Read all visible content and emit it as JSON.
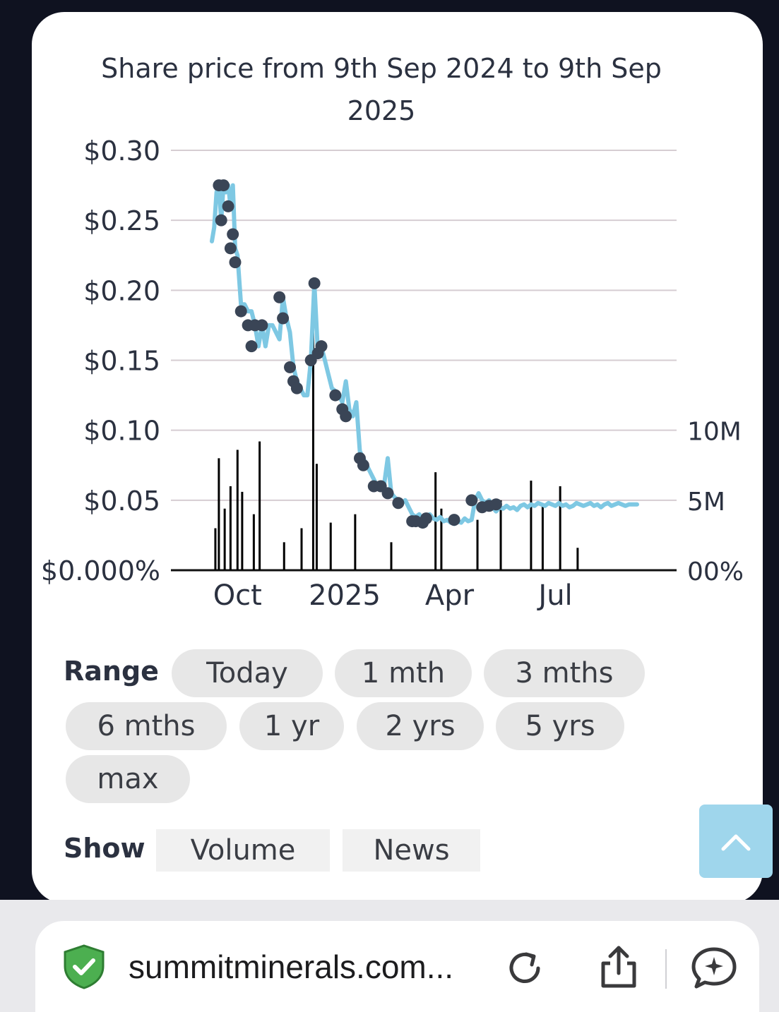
{
  "chart": {
    "title": "Share price from 9th Sep 2024 to 9th Sep 2025",
    "y_ticks": [
      "$0.30",
      "$0.25",
      "$0.20",
      "$0.15",
      "$0.10",
      "$0.05",
      "$0.000%"
    ],
    "right_ticks": [
      "10M",
      "5M",
      "00%"
    ],
    "x_ticks": [
      "Oct",
      "2025",
      "Apr",
      "Jul"
    ]
  },
  "chart_data": {
    "type": "line",
    "title": "Share price from 9th Sep 2024 to 9th Sep 2025",
    "x_range": [
      "2024-09-09",
      "2025-09-09"
    ],
    "ylim": [
      0,
      0.3
    ],
    "y2lim": [
      0,
      15000000
    ],
    "grid": true,
    "x_tick_labels": [
      "Oct",
      "2025",
      "Apr",
      "Jul"
    ],
    "series": [
      {
        "x": [
          "2024-09-09",
          "2024-09-11",
          "2024-09-13",
          "2024-09-15",
          "2024-09-17",
          "2024-09-19",
          "2024-09-21",
          "2024-09-23",
          "2024-09-25",
          "2024-09-27",
          "2024-09-29",
          "2024-10-01",
          "2024-10-04",
          "2024-10-07",
          "2024-10-10",
          "2024-10-13",
          "2024-10-16",
          "2024-10-19",
          "2024-10-22",
          "2024-10-25",
          "2024-10-28",
          "2024-10-31",
          "2024-11-03",
          "2024-11-06",
          "2024-11-09",
          "2024-11-12",
          "2024-11-15",
          "2024-11-18",
          "2024-11-21",
          "2024-11-24",
          "2024-11-27",
          "2024-11-30",
          "2024-12-03",
          "2024-12-06",
          "2024-12-09",
          "2024-12-12",
          "2024-12-15",
          "2024-12-18",
          "2024-12-21",
          "2024-12-24",
          "2024-12-27",
          "2024-12-30",
          "2025-01-02",
          "2025-01-05",
          "2025-01-08",
          "2025-01-11",
          "2025-01-14",
          "2025-01-17",
          "2025-01-20",
          "2025-01-23",
          "2025-01-26",
          "2025-01-29",
          "2025-02-01",
          "2025-02-04",
          "2025-02-07",
          "2025-02-10",
          "2025-02-13",
          "2025-02-16",
          "2025-02-19",
          "2025-02-22",
          "2025-02-25",
          "2025-02-28",
          "2025-03-03",
          "2025-03-06",
          "2025-03-09",
          "2025-03-12",
          "2025-03-15",
          "2025-03-18",
          "2025-03-21",
          "2025-03-24",
          "2025-03-27",
          "2025-03-30",
          "2025-04-02",
          "2025-04-05",
          "2025-04-08",
          "2025-04-11",
          "2025-04-14",
          "2025-04-17",
          "2025-04-20",
          "2025-04-23",
          "2025-04-26",
          "2025-04-29",
          "2025-05-02",
          "2025-05-05",
          "2025-05-08",
          "2025-05-11",
          "2025-05-14",
          "2025-05-17",
          "2025-05-20",
          "2025-05-23",
          "2025-05-26",
          "2025-05-29",
          "2025-06-01",
          "2025-06-04",
          "2025-06-07",
          "2025-06-10",
          "2025-06-13",
          "2025-06-16",
          "2025-06-19",
          "2025-06-22",
          "2025-06-25",
          "2025-06-28",
          "2025-07-01",
          "2025-07-04",
          "2025-07-07",
          "2025-07-10",
          "2025-07-13",
          "2025-07-16",
          "2025-07-19",
          "2025-07-22",
          "2025-07-25",
          "2025-07-28",
          "2025-07-31",
          "2025-08-03",
          "2025-08-06",
          "2025-08-09",
          "2025-08-12",
          "2025-08-15",
          "2025-08-18",
          "2025-08-21",
          "2025-08-24",
          "2025-08-27",
          "2025-08-30",
          "2025-09-02",
          "2025-09-05",
          "2025-09-09"
        ],
        "values": [
          0.235,
          0.245,
          0.27,
          0.275,
          0.25,
          0.275,
          0.27,
          0.275,
          0.26,
          0.275,
          0.23,
          0.225,
          0.19,
          0.19,
          0.185,
          0.185,
          0.175,
          0.16,
          0.175,
          0.16,
          0.175,
          0.175,
          0.17,
          0.165,
          0.195,
          0.18,
          0.17,
          0.145,
          0.135,
          0.13,
          0.125,
          0.125,
          0.15,
          0.205,
          0.155,
          0.16,
          0.15,
          0.14,
          0.13,
          0.128,
          0.125,
          0.12,
          0.135,
          0.115,
          0.11,
          0.12,
          0.085,
          0.08,
          0.075,
          0.07,
          0.065,
          0.06,
          0.06,
          0.062,
          0.08,
          0.055,
          0.052,
          0.05,
          0.048,
          0.05,
          0.045,
          0.04,
          0.038,
          0.04,
          0.036,
          0.035,
          0.04,
          0.037,
          0.036,
          0.038,
          0.035,
          0.036,
          0.034,
          0.033,
          0.035,
          0.034,
          0.037,
          0.035,
          0.036,
          0.05,
          0.055,
          0.05,
          0.048,
          0.05,
          0.045,
          0.042,
          0.045,
          0.044,
          0.046,
          0.044,
          0.045,
          0.043,
          0.046,
          0.047,
          0.045,
          0.047,
          0.046,
          0.048,
          0.047,
          0.046,
          0.048,
          0.047,
          0.046,
          0.048,
          0.046,
          0.047,
          0.045,
          0.046,
          0.048,
          0.047,
          0.046,
          0.047,
          0.048,
          0.046,
          0.047,
          0.045,
          0.047,
          0.048,
          0.046,
          0.047,
          0.048,
          0.047,
          0.046,
          0.047,
          0.047,
          0.047
        ],
        "color": "#7ec8e3"
      }
    ],
    "news_markers": {
      "x": [
        "2024-09-15",
        "2024-09-17",
        "2024-09-19",
        "2024-09-23",
        "2024-09-25",
        "2024-09-27",
        "2024-09-29",
        "2024-10-04",
        "2024-10-10",
        "2024-10-13",
        "2024-10-16",
        "2024-10-22",
        "2024-11-06",
        "2024-11-09",
        "2024-11-15",
        "2024-11-18",
        "2024-11-21",
        "2024-12-03",
        "2024-12-06",
        "2024-12-09",
        "2024-12-12",
        "2024-12-24",
        "2024-12-30",
        "2025-01-02",
        "2025-01-14",
        "2025-01-17",
        "2025-01-26",
        "2025-02-01",
        "2025-02-07",
        "2025-02-16",
        "2025-02-28",
        "2025-03-03",
        "2025-03-09",
        "2025-03-12",
        "2025-04-05",
        "2025-04-20",
        "2025-04-29",
        "2025-05-05",
        "2025-05-11"
      ],
      "values": [
        0.275,
        0.25,
        0.275,
        0.26,
        0.23,
        0.24,
        0.22,
        0.185,
        0.175,
        0.16,
        0.175,
        0.175,
        0.195,
        0.18,
        0.145,
        0.135,
        0.13,
        0.15,
        0.205,
        0.155,
        0.16,
        0.125,
        0.115,
        0.11,
        0.08,
        0.075,
        0.06,
        0.06,
        0.055,
        0.048,
        0.035,
        0.035,
        0.034,
        0.037,
        0.036,
        0.05,
        0.045,
        0.046,
        0.047
      ],
      "color": "#3a4556"
    },
    "volume": {
      "x": [
        "2024-09-12",
        "2024-09-15",
        "2024-09-20",
        "2024-09-25",
        "2024-10-01",
        "2024-10-05",
        "2024-10-15",
        "2024-10-20",
        "2024-11-10",
        "2024-11-25",
        "2024-12-05",
        "2024-12-08",
        "2024-12-20",
        "2025-01-10",
        "2025-02-10",
        "2025-03-20",
        "2025-03-25",
        "2025-04-25",
        "2025-05-15",
        "2025-06-10",
        "2025-06-20",
        "2025-07-05",
        "2025-07-20"
      ],
      "values": [
        1500000,
        4000000,
        2200000,
        3000000,
        4300000,
        2800000,
        2000000,
        4600000,
        1000000,
        1500000,
        10000000,
        3800000,
        1700000,
        2000000,
        1000000,
        3500000,
        2200000,
        1800000,
        2500000,
        3200000,
        2300000,
        3000000,
        800000
      ],
      "color": "#000000"
    }
  },
  "controls": {
    "range_label": "Range",
    "ranges": [
      "Today",
      "1 mth",
      "3 mths",
      "6 mths",
      "1 yr",
      "2 yrs",
      "5 yrs",
      "max"
    ],
    "show_label": "Show",
    "volume_label": "Volume",
    "news_label": "News"
  },
  "browser": {
    "url": "summitminerals.com..."
  }
}
